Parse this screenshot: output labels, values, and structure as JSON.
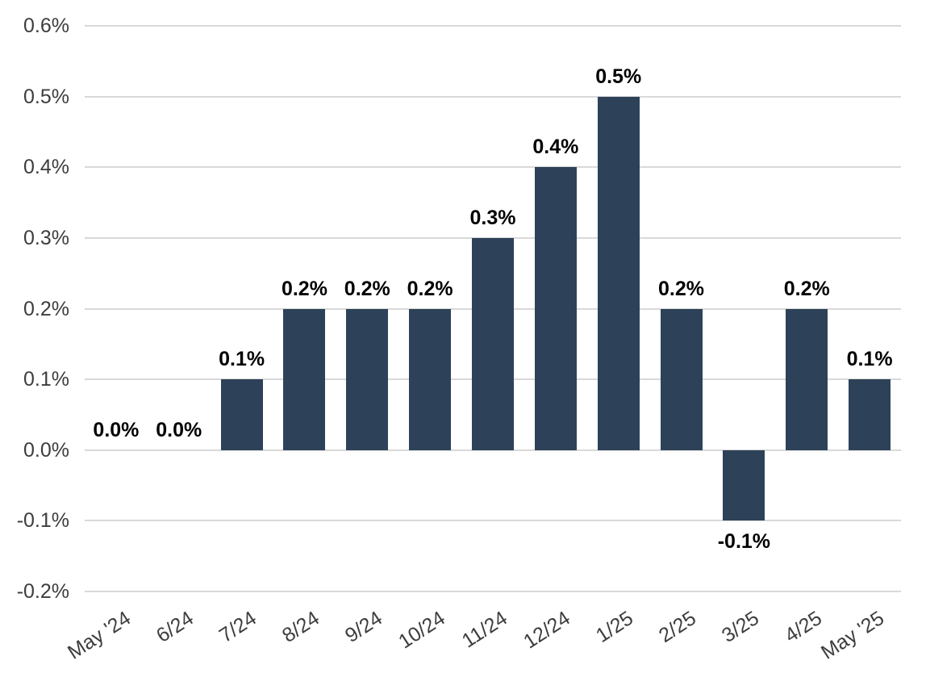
{
  "chart_data": {
    "type": "bar",
    "title": "",
    "xlabel": "",
    "ylabel": "",
    "categories": [
      "May '24",
      "6/24",
      "7/24",
      "8/24",
      "9/24",
      "10/24",
      "11/24",
      "12/24",
      "1/25",
      "2/25",
      "3/25",
      "4/25",
      "May '25"
    ],
    "values": [
      0.0,
      0.0,
      0.1,
      0.2,
      0.2,
      0.2,
      0.3,
      0.4,
      0.5,
      0.2,
      -0.1,
      0.2,
      0.1
    ],
    "value_labels": [
      "0.0%",
      "0.0%",
      "0.1%",
      "0.2%",
      "0.2%",
      "0.2%",
      "0.3%",
      "0.4%",
      "0.5%",
      "0.2%",
      "-0.1%",
      "0.2%",
      "0.1%"
    ],
    "y_ticks": [
      {
        "label": "0.6%",
        "value": 0.6
      },
      {
        "label": "0.5%",
        "value": 0.5
      },
      {
        "label": "0.4%",
        "value": 0.4
      },
      {
        "label": "0.3%",
        "value": 0.3
      },
      {
        "label": "0.2%",
        "value": 0.2
      },
      {
        "label": "0.1%",
        "value": 0.1
      },
      {
        "label": "0.0%",
        "value": 0.0
      },
      {
        "label": "-0.1%",
        "value": -0.1
      },
      {
        "label": "-0.2%",
        "value": -0.2
      }
    ],
    "ylim": [
      -0.2,
      0.6
    ],
    "grid": true,
    "legend": "none",
    "colors": {
      "bar": "#2d4258",
      "gridline": "#d9d9d9",
      "value_label": "#000000",
      "tick_label": "#3d3d3d",
      "background": "#ffffff"
    }
  }
}
